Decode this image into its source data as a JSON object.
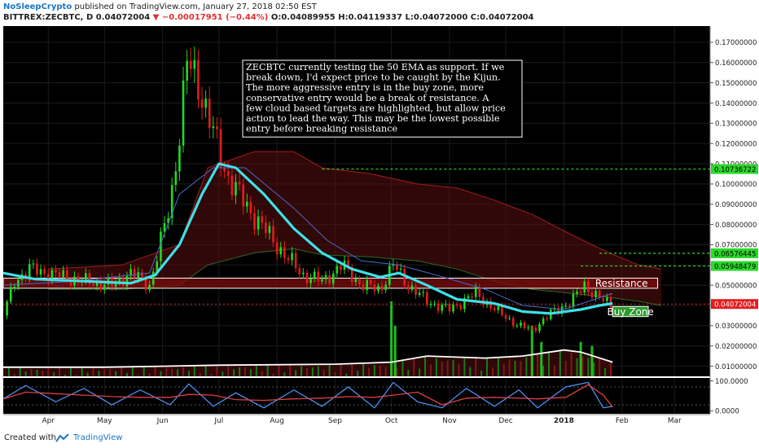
{
  "header": {
    "author": "NoSleepCrypto",
    "published": "published on TradingView.com, January 27, 2018 02:50 EST",
    "symbol": "BITTREX:ZECBTC, D",
    "last": "0.04072004",
    "change": "−0.00017951 (−0.44%)",
    "ohlc": "O:0.04089955 H:0.04119337 L:0.04072000 C:0.04072004"
  },
  "footer": {
    "created_with": "Created with",
    "brand": "TradingView"
  },
  "colors": {
    "background": "#000000",
    "ema": "#3ee0e8",
    "bull": "#1fdc1f",
    "bear": "#e21d1d",
    "resistance_zone": "#7a0c0c",
    "buy_zone": "#2c9a2c",
    "stoch_k": "#4a8ff0",
    "stoch_d": "#e04040"
  },
  "chart_data": {
    "type": "candlestick",
    "title": "",
    "ylim": [
      0.005,
      0.178
    ],
    "y_ticks": [
      "0.17000000",
      "0.16000000",
      "0.15000000",
      "0.14000000",
      "0.13000000",
      "0.12000000",
      "0.11000000",
      "0.10000000",
      "0.09000000",
      "0.08000000",
      "0.07000000",
      "0.06000000",
      "0.05000000",
      "0.04000000",
      "0.03000000",
      "0.02000000",
      "0.01000000"
    ],
    "y_tick_values": [
      0.17,
      0.16,
      0.15,
      0.14,
      0.13,
      0.12,
      0.11,
      0.1,
      0.09,
      0.08,
      0.07,
      0.06,
      0.05,
      0.04,
      0.03,
      0.02,
      0.01
    ],
    "x_ticks": [
      "Apr",
      "May",
      "Jun",
      "Jul",
      "Aug",
      "Sep",
      "Oct",
      "Nov",
      "Dec",
      "2018",
      "Feb",
      "Mar"
    ],
    "x_tick_dates": [
      "2017-04-01",
      "2017-05-01",
      "2017-06-01",
      "2017-07-01",
      "2017-08-01",
      "2017-09-01",
      "2017-10-01",
      "2017-11-01",
      "2017-12-01",
      "2018-01-01",
      "2018-02-01",
      "2018-03-01"
    ],
    "x_range": [
      "2017-03-08",
      "2018-03-20"
    ],
    "last_date": "2018-01-27",
    "price_path": [
      [
        "2017-03-08",
        0.035
      ],
      [
        "2017-03-14",
        0.052
      ],
      [
        "2017-03-22",
        0.058
      ],
      [
        "2017-04-05",
        0.055
      ],
      [
        "2017-04-20",
        0.052
      ],
      [
        "2017-05-05",
        0.05
      ],
      [
        "2017-05-15",
        0.056
      ],
      [
        "2017-05-25",
        0.05
      ],
      [
        "2017-06-01",
        0.075
      ],
      [
        "2017-06-05",
        0.09
      ],
      [
        "2017-06-10",
        0.125
      ],
      [
        "2017-06-14",
        0.16
      ],
      [
        "2017-06-20",
        0.15
      ],
      [
        "2017-06-28",
        0.125
      ],
      [
        "2017-07-05",
        0.105
      ],
      [
        "2017-07-15",
        0.09
      ],
      [
        "2017-07-25",
        0.078
      ],
      [
        "2017-08-05",
        0.065
      ],
      [
        "2017-08-15",
        0.055
      ],
      [
        "2017-08-25",
        0.052
      ],
      [
        "2017-09-05",
        0.06
      ],
      [
        "2017-09-15",
        0.05
      ],
      [
        "2017-09-25",
        0.048
      ],
      [
        "2017-10-02",
        0.06
      ],
      [
        "2017-10-10",
        0.05
      ],
      [
        "2017-10-20",
        0.042
      ],
      [
        "2017-11-01",
        0.038
      ],
      [
        "2017-11-15",
        0.046
      ],
      [
        "2017-11-28",
        0.036
      ],
      [
        "2017-12-08",
        0.03
      ],
      [
        "2017-12-15",
        0.028
      ],
      [
        "2017-12-25",
        0.036
      ],
      [
        "2018-01-05",
        0.042
      ],
      [
        "2018-01-12",
        0.05
      ],
      [
        "2018-01-17",
        0.046
      ],
      [
        "2018-01-22",
        0.042
      ],
      [
        "2018-01-27",
        0.0407
      ]
    ],
    "ema50_path": [
      [
        "2017-03-08",
        0.056
      ],
      [
        "2017-03-25",
        0.053
      ],
      [
        "2017-04-20",
        0.052
      ],
      [
        "2017-05-15",
        0.051
      ],
      [
        "2017-05-28",
        0.055
      ],
      [
        "2017-06-10",
        0.07
      ],
      [
        "2017-06-22",
        0.095
      ],
      [
        "2017-07-01",
        0.11
      ],
      [
        "2017-07-10",
        0.108
      ],
      [
        "2017-07-25",
        0.095
      ],
      [
        "2017-08-10",
        0.078
      ],
      [
        "2017-08-25",
        0.066
      ],
      [
        "2017-09-10",
        0.058
      ],
      [
        "2017-09-25",
        0.054
      ],
      [
        "2017-10-05",
        0.056
      ],
      [
        "2017-10-20",
        0.05
      ],
      [
        "2017-11-05",
        0.043
      ],
      [
        "2017-11-25",
        0.041
      ],
      [
        "2017-12-10",
        0.037
      ],
      [
        "2017-12-25",
        0.036
      ],
      [
        "2018-01-10",
        0.038
      ],
      [
        "2018-01-20",
        0.04
      ],
      [
        "2018-01-27",
        0.041
      ]
    ],
    "kijun_path": [
      [
        "2017-03-08",
        0.05
      ],
      [
        "2017-04-15",
        0.052
      ],
      [
        "2017-05-25",
        0.056
      ],
      [
        "2017-06-10",
        0.095
      ],
      [
        "2017-06-28",
        0.108
      ],
      [
        "2017-07-15",
        0.108
      ],
      [
        "2017-08-10",
        0.088
      ],
      [
        "2017-08-28",
        0.072
      ],
      [
        "2017-09-15",
        0.062
      ],
      [
        "2017-10-05",
        0.06
      ],
      [
        "2017-10-25",
        0.055
      ],
      [
        "2017-11-20",
        0.048
      ],
      [
        "2017-12-10",
        0.04
      ],
      [
        "2018-01-01",
        0.038
      ],
      [
        "2018-01-27",
        0.046
      ]
    ],
    "cloud_top_path": [
      [
        "2017-04-01",
        0.058
      ],
      [
        "2017-05-10",
        0.06
      ],
      [
        "2017-06-10",
        0.07
      ],
      [
        "2017-06-25",
        0.108
      ],
      [
        "2017-07-20",
        0.116
      ],
      [
        "2017-08-10",
        0.116
      ],
      [
        "2017-08-25",
        0.108
      ],
      [
        "2017-09-20",
        0.105
      ],
      [
        "2017-10-15",
        0.1
      ],
      [
        "2017-11-05",
        0.098
      ],
      [
        "2017-11-25",
        0.092
      ],
      [
        "2017-12-15",
        0.085
      ],
      [
        "2018-01-05",
        0.075
      ],
      [
        "2018-01-25",
        0.066
      ],
      [
        "2018-02-10",
        0.06
      ],
      [
        "2018-02-22",
        0.058
      ]
    ],
    "cloud_bottom_path": [
      [
        "2017-04-01",
        0.048
      ],
      [
        "2017-05-10",
        0.048
      ],
      [
        "2017-06-10",
        0.05
      ],
      [
        "2017-06-25",
        0.06
      ],
      [
        "2017-07-20",
        0.066
      ],
      [
        "2017-08-10",
        0.068
      ],
      [
        "2017-08-25",
        0.065
      ],
      [
        "2017-09-20",
        0.064
      ],
      [
        "2017-10-15",
        0.062
      ],
      [
        "2017-11-05",
        0.058
      ],
      [
        "2017-11-25",
        0.052
      ],
      [
        "2017-12-15",
        0.048
      ],
      [
        "2018-01-05",
        0.046
      ],
      [
        "2018-01-25",
        0.044
      ],
      [
        "2018-02-10",
        0.042
      ],
      [
        "2018-02-22",
        0.04
      ]
    ],
    "volume_baseline_path": [
      [
        "2017-03-08",
        0.0095
      ],
      [
        "2017-05-01",
        0.0095
      ],
      [
        "2017-06-01",
        0.01
      ],
      [
        "2017-07-01",
        0.0105
      ],
      [
        "2017-09-01",
        0.011
      ],
      [
        "2017-10-01",
        0.012
      ],
      [
        "2017-10-20",
        0.015
      ],
      [
        "2017-11-20",
        0.014
      ],
      [
        "2017-12-10",
        0.015
      ],
      [
        "2018-01-01",
        0.018
      ],
      [
        "2018-01-10",
        0.017
      ],
      [
        "2018-01-27",
        0.012
      ]
    ],
    "volume_spikes": [
      [
        "2017-10-01",
        0.042
      ],
      [
        "2017-10-03",
        0.03
      ],
      [
        "2017-12-15",
        0.03
      ],
      [
        "2017-12-20",
        0.022
      ],
      [
        "2018-01-10",
        0.022
      ],
      [
        "2018-01-16",
        0.02
      ]
    ],
    "zones": [
      {
        "name": "Resistance",
        "low": 0.0485,
        "high": 0.0535,
        "x_start": "2017-03-08",
        "x_end": "2018-02-20"
      },
      {
        "name": "Buy Zone",
        "low": 0.0345,
        "high": 0.0395,
        "x_start": "2018-01-27",
        "x_end": "2018-02-15"
      }
    ],
    "targets": [
      {
        "value": 0.10736722,
        "label": "0.10736722",
        "from": "2017-08-25"
      },
      {
        "value": 0.06576445,
        "label": "0.06576445",
        "from": "2018-01-20"
      },
      {
        "value": 0.05948479,
        "label": "0.05948479",
        "from": "2018-01-10"
      }
    ],
    "current_price": {
      "value": 0.04072004,
      "label": "0.04072004"
    },
    "annotation": [
      "ZECBTC currently testing the 50 EMA as support. If we",
      "break down, I'd expect price to be caught by the Kijun.",
      "The more aggressive entry is in the buy zone, more",
      "conservative entry would be a break of resistance. A",
      "few cloud based targets are highlighted, but allow price",
      "action to lead the way. This may be the lowest possible",
      "entry before breaking resistance"
    ],
    "stoch": {
      "ylim": [
        -10,
        110
      ],
      "ticks": [
        "100.0000",
        "0.0000"
      ],
      "tick_values": [
        100,
        0
      ],
      "levels": [
        80,
        20
      ],
      "k_path": [
        [
          "2017-03-08",
          40
        ],
        [
          "2017-03-20",
          85
        ],
        [
          "2017-04-05",
          30
        ],
        [
          "2017-04-20",
          75
        ],
        [
          "2017-05-05",
          20
        ],
        [
          "2017-05-20",
          70
        ],
        [
          "2017-06-05",
          20
        ],
        [
          "2017-06-15",
          90
        ],
        [
          "2017-06-28",
          15
        ],
        [
          "2017-07-10",
          60
        ],
        [
          "2017-07-25",
          10
        ],
        [
          "2017-08-10",
          70
        ],
        [
          "2017-08-25",
          15
        ],
        [
          "2017-09-08",
          80
        ],
        [
          "2017-09-22",
          10
        ],
        [
          "2017-10-02",
          95
        ],
        [
          "2017-10-15",
          30
        ],
        [
          "2017-10-28",
          10
        ],
        [
          "2017-11-10",
          75
        ],
        [
          "2017-11-25",
          15
        ],
        [
          "2017-12-08",
          70
        ],
        [
          "2017-12-18",
          10
        ],
        [
          "2018-01-02",
          80
        ],
        [
          "2018-01-14",
          95
        ],
        [
          "2018-01-22",
          10
        ],
        [
          "2018-01-27",
          15
        ]
      ]
    }
  }
}
